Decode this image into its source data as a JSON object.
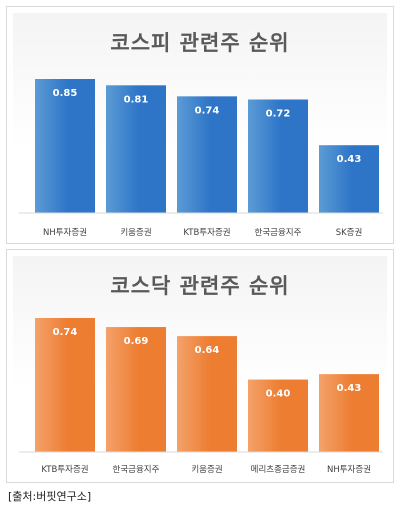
{
  "chart_data": [
    {
      "type": "bar",
      "title": "코스피 관련주 순위",
      "categories": [
        "NH투자증권",
        "키움증권",
        "KTB투자증권",
        "한국금융지주",
        "SK증권"
      ],
      "values": [
        0.85,
        0.81,
        0.74,
        0.72,
        0.43
      ],
      "data_labels": [
        "0.85",
        "0.81",
        "0.74",
        "0.72",
        "0.43"
      ],
      "ylim": [
        0,
        0.85
      ],
      "grid": false,
      "color": "#2E75C8"
    },
    {
      "type": "bar",
      "title": "코스닥 관련주 순위",
      "categories": [
        "KTB투자증권",
        "한국금융지주",
        "키움증권",
        "메리츠종금증권",
        "NH투자증권"
      ],
      "values": [
        0.74,
        0.69,
        0.64,
        0.4,
        0.43
      ],
      "data_labels": [
        "0.74",
        "0.69",
        "0.64",
        "0.40",
        "0.43"
      ],
      "ylim": [
        0,
        0.74
      ],
      "grid": false,
      "color": "#ED7D31"
    }
  ],
  "source": "[출처:버핏연구소]"
}
